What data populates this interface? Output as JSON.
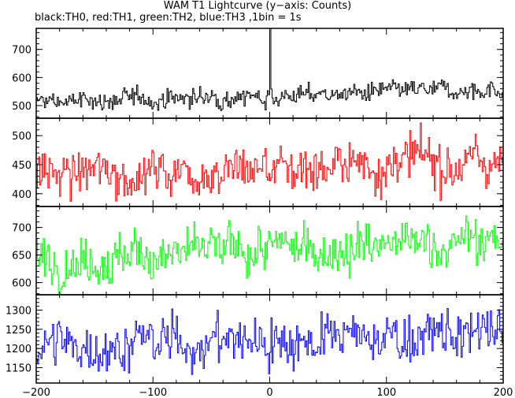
{
  "figure": {
    "title": "WAM T1 Lightcurve (y−axis: Counts)",
    "subtitle": "black:TH0, red:TH1, green:TH2, blue:TH3 ,1bin = 1s"
  },
  "chart_data": {
    "type": "line",
    "title": "WAM T1 Lightcurve (y−axis: Counts)",
    "subtitle": "black:TH0, red:TH1, green:TH2, blue:TH3 ,1bin = 1s",
    "xlabel": "",
    "ylabel": "Counts",
    "xlim": [
      -200,
      200
    ],
    "x_ticks": [
      -200,
      -100,
      0,
      100,
      200
    ],
    "x_tick_labels": [
      "−200",
      "−100",
      "0",
      "100",
      "200"
    ],
    "bin_seconds": 1,
    "grid": false,
    "legend": "none",
    "panels": [
      {
        "name": "TH0",
        "color": "#000000",
        "ylim": [
          455,
          775
        ],
        "yticks": [
          500,
          600,
          700
        ],
        "mean_start": 512,
        "mean_end": 558,
        "noise": 22,
        "spike_at": 0,
        "spike_value": 775
      },
      {
        "name": "TH1",
        "color": "#ff0000",
        "ylim": [
          378,
          530
        ],
        "yticks": [
          400,
          450,
          500
        ],
        "mean_start": 432,
        "mean_end": 458,
        "noise": 26
      },
      {
        "name": "TH2",
        "color": "#00ff00",
        "ylim": [
          578,
          738
        ],
        "yticks": [
          600,
          650,
          700
        ],
        "mean_start": 642,
        "mean_end": 676,
        "noise": 27
      },
      {
        "name": "TH3",
        "color": "#0000ff",
        "ylim": [
          1110,
          1340
        ],
        "yticks": [
          1150,
          1200,
          1250,
          1300
        ],
        "mean_start": 1205,
        "mean_end": 1238,
        "noise": 42
      }
    ]
  }
}
